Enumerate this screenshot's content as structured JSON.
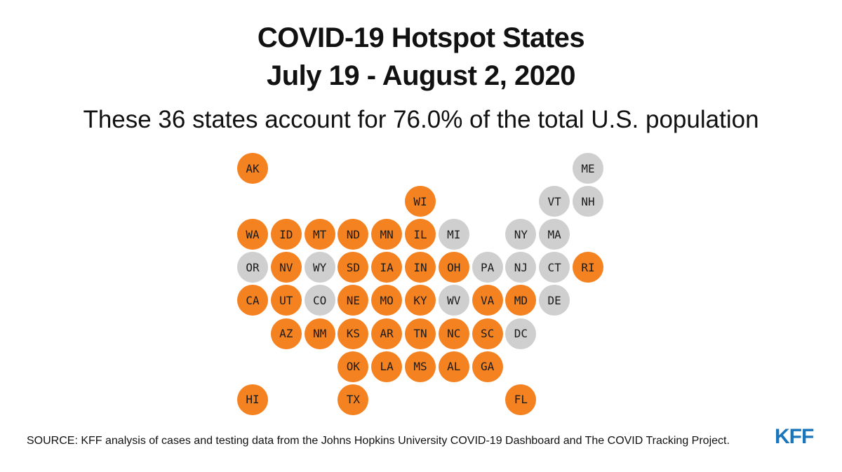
{
  "title_line1": "COVID-19 Hotspot States",
  "title_line2": "July 19 - August 2, 2020",
  "subtitle": "These 36 states account for 76.0% of the total U.S. population",
  "source": "SOURCE: KFF analysis of cases and testing data from the Johns Hopkins University COVID-19 Dashboard and The COVID Tracking Project.",
  "logo_text": "KFF",
  "colors": {
    "hotspot": "#f58220",
    "not_hotspot": "#cfcfcf",
    "logo": "#1b75bb"
  },
  "states": [
    {
      "abbr": "AK",
      "hotspot": true,
      "row": 0,
      "col": 0
    },
    {
      "abbr": "ME",
      "hotspot": false,
      "row": 0,
      "col": 10
    },
    {
      "abbr": "WI",
      "hotspot": true,
      "row": 1,
      "col": 5
    },
    {
      "abbr": "VT",
      "hotspot": false,
      "row": 1,
      "col": 9
    },
    {
      "abbr": "NH",
      "hotspot": false,
      "row": 1,
      "col": 10
    },
    {
      "abbr": "WA",
      "hotspot": true,
      "row": 2,
      "col": 0
    },
    {
      "abbr": "ID",
      "hotspot": true,
      "row": 2,
      "col": 1
    },
    {
      "abbr": "MT",
      "hotspot": true,
      "row": 2,
      "col": 2
    },
    {
      "abbr": "ND",
      "hotspot": true,
      "row": 2,
      "col": 3
    },
    {
      "abbr": "MN",
      "hotspot": true,
      "row": 2,
      "col": 4
    },
    {
      "abbr": "IL",
      "hotspot": true,
      "row": 2,
      "col": 5
    },
    {
      "abbr": "MI",
      "hotspot": false,
      "row": 2,
      "col": 6
    },
    {
      "abbr": "NY",
      "hotspot": false,
      "row": 2,
      "col": 8
    },
    {
      "abbr": "MA",
      "hotspot": false,
      "row": 2,
      "col": 9
    },
    {
      "abbr": "OR",
      "hotspot": false,
      "row": 3,
      "col": 0
    },
    {
      "abbr": "NV",
      "hotspot": true,
      "row": 3,
      "col": 1
    },
    {
      "abbr": "WY",
      "hotspot": false,
      "row": 3,
      "col": 2
    },
    {
      "abbr": "SD",
      "hotspot": true,
      "row": 3,
      "col": 3
    },
    {
      "abbr": "IA",
      "hotspot": true,
      "row": 3,
      "col": 4
    },
    {
      "abbr": "IN",
      "hotspot": true,
      "row": 3,
      "col": 5
    },
    {
      "abbr": "OH",
      "hotspot": true,
      "row": 3,
      "col": 6
    },
    {
      "abbr": "PA",
      "hotspot": false,
      "row": 3,
      "col": 7
    },
    {
      "abbr": "NJ",
      "hotspot": false,
      "row": 3,
      "col": 8
    },
    {
      "abbr": "CT",
      "hotspot": false,
      "row": 3,
      "col": 9
    },
    {
      "abbr": "RI",
      "hotspot": true,
      "row": 3,
      "col": 10
    },
    {
      "abbr": "CA",
      "hotspot": true,
      "row": 4,
      "col": 0
    },
    {
      "abbr": "UT",
      "hotspot": true,
      "row": 4,
      "col": 1
    },
    {
      "abbr": "CO",
      "hotspot": false,
      "row": 4,
      "col": 2
    },
    {
      "abbr": "NE",
      "hotspot": true,
      "row": 4,
      "col": 3
    },
    {
      "abbr": "MO",
      "hotspot": true,
      "row": 4,
      "col": 4
    },
    {
      "abbr": "KY",
      "hotspot": true,
      "row": 4,
      "col": 5
    },
    {
      "abbr": "WV",
      "hotspot": false,
      "row": 4,
      "col": 6
    },
    {
      "abbr": "VA",
      "hotspot": true,
      "row": 4,
      "col": 7
    },
    {
      "abbr": "MD",
      "hotspot": true,
      "row": 4,
      "col": 8
    },
    {
      "abbr": "DE",
      "hotspot": false,
      "row": 4,
      "col": 9
    },
    {
      "abbr": "AZ",
      "hotspot": true,
      "row": 5,
      "col": 1
    },
    {
      "abbr": "NM",
      "hotspot": true,
      "row": 5,
      "col": 2
    },
    {
      "abbr": "KS",
      "hotspot": true,
      "row": 5,
      "col": 3
    },
    {
      "abbr": "AR",
      "hotspot": true,
      "row": 5,
      "col": 4
    },
    {
      "abbr": "TN",
      "hotspot": true,
      "row": 5,
      "col": 5
    },
    {
      "abbr": "NC",
      "hotspot": true,
      "row": 5,
      "col": 6
    },
    {
      "abbr": "SC",
      "hotspot": true,
      "row": 5,
      "col": 7
    },
    {
      "abbr": "DC",
      "hotspot": false,
      "row": 5,
      "col": 8
    },
    {
      "abbr": "OK",
      "hotspot": true,
      "row": 6,
      "col": 3
    },
    {
      "abbr": "LA",
      "hotspot": true,
      "row": 6,
      "col": 4
    },
    {
      "abbr": "MS",
      "hotspot": true,
      "row": 6,
      "col": 5
    },
    {
      "abbr": "AL",
      "hotspot": true,
      "row": 6,
      "col": 6
    },
    {
      "abbr": "GA",
      "hotspot": true,
      "row": 6,
      "col": 7
    },
    {
      "abbr": "HI",
      "hotspot": true,
      "row": 7,
      "col": 0
    },
    {
      "abbr": "TX",
      "hotspot": true,
      "row": 7,
      "col": 3
    },
    {
      "abbr": "FL",
      "hotspot": true,
      "row": 7,
      "col": 8
    }
  ]
}
